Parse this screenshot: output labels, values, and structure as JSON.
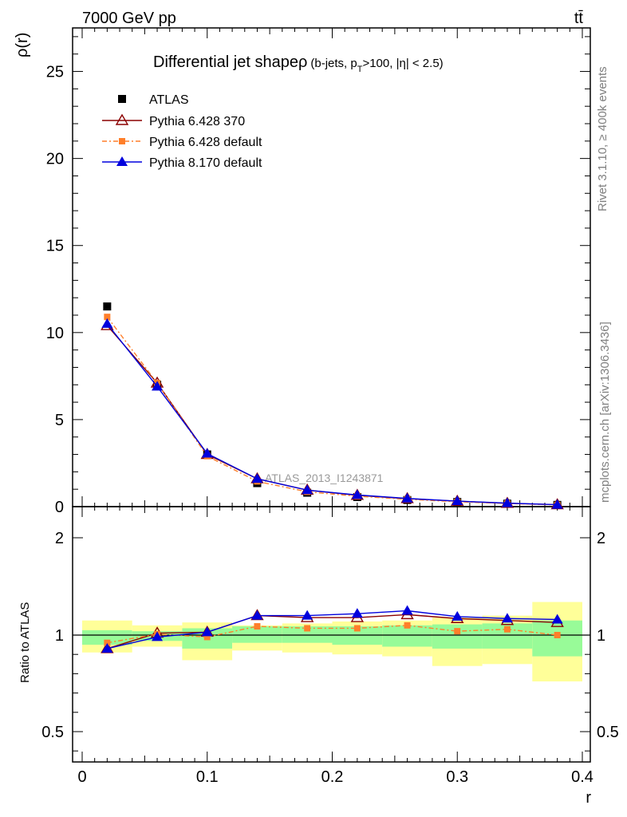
{
  "header": {
    "left": "7000 GeV pp",
    "right": "tt̄",
    "rivet": "Rivet 3.1.10, ≥ 400k events",
    "mcplots": "mcplots.cern.ch [arXiv:1306.3436]"
  },
  "colors": {
    "atlas": "#000000",
    "p6_370": "#8b0000",
    "p6_def": "#ff7f2a",
    "p8": "#0000dd",
    "band_inner": "#98fb98",
    "band_outer": "#ffff99"
  },
  "chart_data": [
    {
      "type": "line",
      "title": "Differential jet shape",
      "title_rho": "ρ",
      "title_cut_prefix": "(b-jets, p",
      "title_cut_sub": "T",
      "title_cut_suffix": ">100, |η| < 2.5)",
      "ylabel": "ρ(r)",
      "xlabel": "",
      "xlim": [
        0,
        0.4
      ],
      "ylim": [
        0,
        27.5
      ],
      "yticks": [
        "0",
        "5",
        "10",
        "15",
        "20",
        "25"
      ],
      "watermark": "ATLAS_2013_I1243871",
      "legend_position": "top-left",
      "x": [
        0.02,
        0.06,
        0.1,
        0.14,
        0.18,
        0.22,
        0.26,
        0.3,
        0.34,
        0.38
      ],
      "series": [
        {
          "name": "ATLAS",
          "marker": "square",
          "values": [
            11.5,
            7.0,
            3.0,
            1.35,
            0.8,
            0.55,
            0.38,
            0.27,
            0.17,
            0.1
          ]
        },
        {
          "name": "Pythia 6.428 370",
          "marker": "open-triangle",
          "values": [
            10.4,
            7.1,
            3.0,
            1.6,
            0.95,
            0.65,
            0.46,
            0.31,
            0.19,
            0.11
          ]
        },
        {
          "name": "Pythia 6.428 default",
          "marker": "small-square",
          "dashed": true,
          "values": [
            10.9,
            7.1,
            2.9,
            1.45,
            0.85,
            0.6,
            0.42,
            0.28,
            0.18,
            0.1
          ]
        },
        {
          "name": "Pythia 8.170 default",
          "marker": "filled-triangle",
          "values": [
            10.5,
            6.9,
            3.05,
            1.6,
            0.95,
            0.67,
            0.47,
            0.32,
            0.2,
            0.11
          ]
        }
      ]
    },
    {
      "type": "line",
      "ylabel": "Ratio to ATLAS",
      "xlabel": "r",
      "xlim": [
        0,
        0.4
      ],
      "ylim": [
        0.35,
        2.3
      ],
      "xticks": [
        "0",
        "0.1",
        "0.2",
        "0.3",
        "0.4"
      ],
      "yticks": [
        "0.5",
        "1",
        "2"
      ],
      "x": [
        0.02,
        0.06,
        0.1,
        0.14,
        0.18,
        0.22,
        0.26,
        0.3,
        0.34,
        0.38
      ],
      "bands": {
        "inner_low": [
          0.95,
          0.97,
          0.93,
          0.96,
          0.96,
          0.95,
          0.94,
          0.93,
          0.93,
          0.89
        ],
        "inner_high": [
          1.05,
          1.04,
          1.07,
          1.09,
          1.09,
          1.09,
          1.1,
          1.11,
          1.12,
          1.15
        ],
        "outer_low": [
          0.91,
          0.94,
          0.87,
          0.92,
          0.91,
          0.9,
          0.89,
          0.84,
          0.85,
          0.76
        ],
        "outer_high": [
          1.15,
          1.1,
          1.13,
          1.1,
          1.12,
          1.14,
          1.15,
          1.18,
          1.2,
          1.34
        ]
      },
      "series": [
        {
          "name": "Pythia 6.428 370",
          "marker": "open-triangle",
          "values": [
            0.93,
            1.02,
            1.03,
            1.2,
            1.18,
            1.18,
            1.21,
            1.17,
            1.15,
            1.13
          ]
        },
        {
          "name": "Pythia 6.428 default",
          "marker": "small-square",
          "dashed": true,
          "values": [
            0.96,
            1.01,
            0.99,
            1.09,
            1.07,
            1.07,
            1.1,
            1.04,
            1.06,
            1.0
          ]
        },
        {
          "name": "Pythia 8.170 default",
          "marker": "filled-triangle",
          "values": [
            0.93,
            0.99,
            1.03,
            1.2,
            1.2,
            1.22,
            1.25,
            1.19,
            1.17,
            1.16
          ]
        }
      ]
    }
  ]
}
